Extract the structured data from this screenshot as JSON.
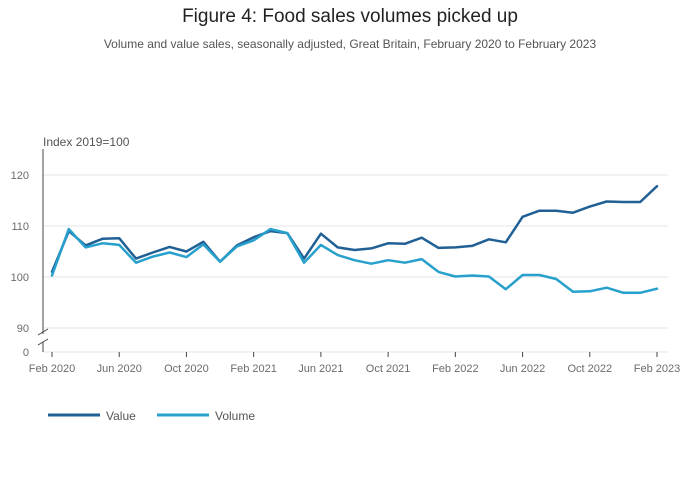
{
  "chart_data": {
    "type": "line",
    "title": "Figure 4: Food sales volumes picked up",
    "subtitle": "Volume and value sales, seasonally adjusted, Great Britain, February 2020 to February 2023",
    "y_unit_label": "Index 2019=100",
    "ylim": [
      88,
      125
    ],
    "y_ticks": [
      90,
      100,
      110,
      120
    ],
    "y_zero_label": "0",
    "x_tick_labels": [
      "Feb 2020",
      "Jun 2020",
      "Oct 2020",
      "Feb 2021",
      "Jun 2021",
      "Oct 2021",
      "Feb 2022",
      "Jun 2022",
      "Oct 2022",
      "Feb 2023"
    ],
    "x_tick_index": [
      0,
      4,
      8,
      12,
      16,
      20,
      24,
      28,
      32,
      36
    ],
    "x_count": 37,
    "series": [
      {
        "name": "Value",
        "color": "#206095",
        "values": [
          101.0,
          109.0,
          106.2,
          107.5,
          107.6,
          103.6,
          104.8,
          105.9,
          105.0,
          106.9,
          103.0,
          106.2,
          107.8,
          109.0,
          108.6,
          103.6,
          108.5,
          105.8,
          105.3,
          105.6,
          106.6,
          106.5,
          107.7,
          105.7,
          105.8,
          106.1,
          107.4,
          106.8,
          111.8,
          113.0,
          113.0,
          112.6,
          113.8,
          114.8,
          114.7,
          114.7,
          117.8
        ]
      },
      {
        "name": "Volume",
        "color": "#27a0cc",
        "values": [
          100.3,
          109.4,
          105.8,
          106.6,
          106.3,
          102.8,
          104.0,
          104.8,
          103.9,
          106.4,
          103.0,
          106.0,
          107.2,
          109.4,
          108.6,
          102.8,
          106.3,
          104.3,
          103.3,
          102.6,
          103.3,
          102.8,
          103.5,
          101.0,
          100.1,
          100.3,
          100.1,
          97.6,
          100.4,
          100.4,
          99.6,
          97.1,
          97.2,
          97.9,
          96.9,
          96.9,
          97.7
        ]
      }
    ],
    "legend": {
      "position": "bottom-left"
    }
  }
}
